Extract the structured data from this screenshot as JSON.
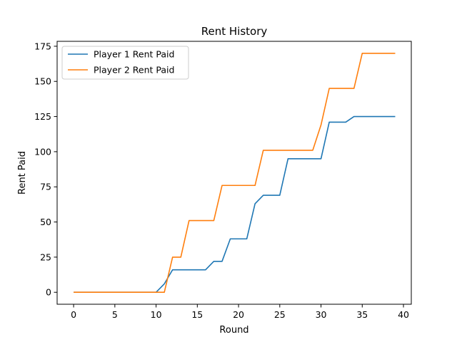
{
  "chart_data": {
    "type": "line",
    "title": "Rent History",
    "xlabel": "Round",
    "ylabel": "Rent Paid",
    "xlim": [
      -2,
      40.95
    ],
    "ylim": [
      -8.5,
      178.5
    ],
    "xticks": [
      0,
      5,
      10,
      15,
      20,
      25,
      30,
      35,
      40
    ],
    "yticks": [
      0,
      25,
      50,
      75,
      100,
      125,
      150,
      175
    ],
    "grid": false,
    "legend_position": "upper-left",
    "x": [
      0,
      1,
      2,
      3,
      4,
      5,
      6,
      7,
      8,
      9,
      10,
      11,
      12,
      13,
      14,
      15,
      16,
      17,
      18,
      19,
      20,
      21,
      22,
      23,
      24,
      25,
      26,
      27,
      28,
      29,
      30,
      31,
      32,
      33,
      34,
      35,
      36,
      37,
      38,
      39
    ],
    "series": [
      {
        "name": "Player 1 Rent Paid",
        "color": "#1f77b4",
        "values": [
          0,
          0,
          0,
          0,
          0,
          0,
          0,
          0,
          0,
          0,
          0,
          6,
          16,
          16,
          16,
          16,
          16,
          22,
          22,
          38,
          38,
          38,
          63,
          69,
          69,
          69,
          95,
          95,
          95,
          95,
          95,
          121,
          121,
          121,
          125,
          125,
          125,
          125,
          125,
          125
        ]
      },
      {
        "name": "Player 2 Rent Paid",
        "color": "#ff7f0e",
        "values": [
          0,
          0,
          0,
          0,
          0,
          0,
          0,
          0,
          0,
          0,
          0,
          0,
          25,
          25,
          51,
          51,
          51,
          51,
          76,
          76,
          76,
          76,
          76,
          101,
          101,
          101,
          101,
          101,
          101,
          101,
          119,
          145,
          145,
          145,
          145,
          170,
          170,
          170,
          170,
          170
        ]
      }
    ]
  }
}
